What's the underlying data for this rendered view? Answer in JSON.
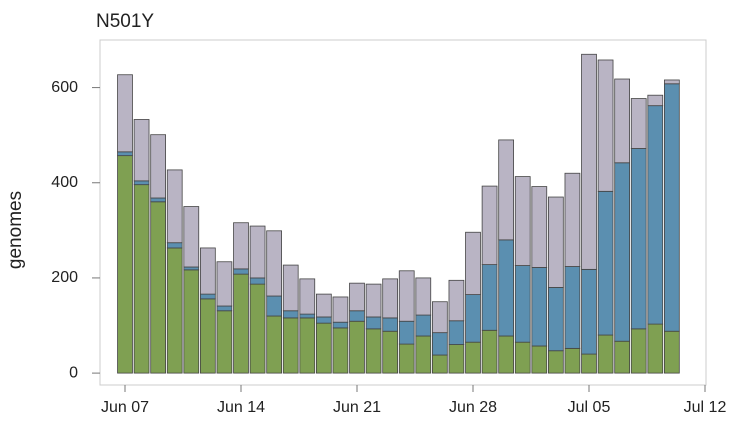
{
  "chart_data": {
    "type": "stacked-bar",
    "title": "N501Y",
    "y_label": "genomes",
    "categories": [
      "Jun 07",
      null,
      null,
      null,
      null,
      null,
      null,
      "Jun 14",
      null,
      null,
      null,
      null,
      null,
      null,
      "Jun 21",
      null,
      null,
      null,
      null,
      null,
      null,
      "Jun 28",
      null,
      null,
      null,
      null,
      null,
      null,
      "Jul 05",
      null,
      null,
      null,
      null,
      null,
      null,
      "Jul 12"
    ],
    "series": [
      {
        "color": "#7fa052",
        "values": [
          457,
          396,
          360,
          263,
          217,
          156,
          131,
          208,
          187,
          120,
          116,
          116,
          105,
          95,
          109,
          93,
          88,
          61,
          78,
          38,
          60,
          65,
          90,
          78,
          65,
          57,
          47,
          52,
          40,
          80,
          67,
          93,
          103,
          88,
          null,
          null
        ]
      },
      {
        "color": "#5b8fb0",
        "values": [
          8,
          8,
          8,
          11,
          6,
          10,
          10,
          11,
          13,
          42,
          15,
          8,
          13,
          12,
          22,
          25,
          28,
          48,
          44,
          47,
          50,
          100,
          138,
          202,
          161,
          165,
          133,
          172,
          178,
          302,
          375,
          379,
          459,
          520,
          null,
          null
        ]
      },
      {
        "color": "#b9b4c4",
        "values": [
          162,
          129,
          133,
          153,
          127,
          97,
          93,
          97,
          109,
          137,
          96,
          74,
          48,
          53,
          58,
          69,
          82,
          106,
          78,
          65,
          85,
          131,
          165,
          210,
          187,
          170,
          190,
          196,
          452,
          276,
          176,
          105,
          22,
          8,
          null,
          null
        ]
      }
    ],
    "ylim": [
      -25,
      700
    ],
    "yticks": [
      0,
      200,
      400,
      600
    ],
    "grid": false
  }
}
